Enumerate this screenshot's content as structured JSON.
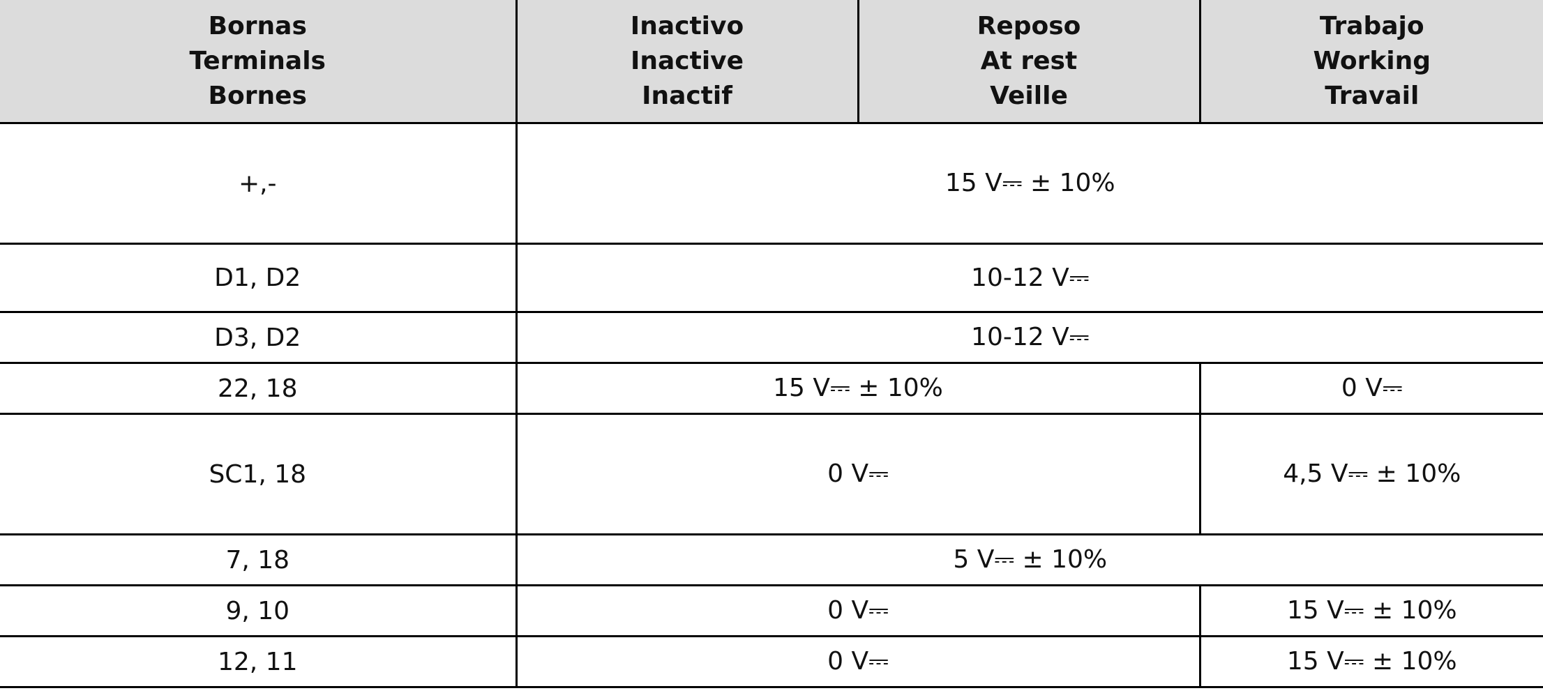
{
  "headers": [
    {
      "lines": [
        "Bornas",
        "Terminals",
        "Bornes"
      ]
    },
    {
      "lines": [
        "Inactivo",
        "Inactive",
        "Inactif"
      ]
    },
    {
      "lines": [
        "Reposo",
        "At rest",
        "Veille"
      ]
    },
    {
      "lines": [
        "Trabajo",
        "Working",
        "Travail"
      ]
    }
  ],
  "rows": [
    {
      "terminal": "+,-",
      "cells": [
        {
          "text": "15 V⎓ ± 10%",
          "span": 3
        }
      ]
    },
    {
      "terminal": "D1, D2",
      "cells": [
        {
          "text": "10-12 V⎓",
          "span": 3
        }
      ]
    },
    {
      "terminal": "D3, D2",
      "cells": [
        {
          "text": "10-12 V⎓",
          "span": 3
        }
      ]
    },
    {
      "terminal": "22, 18",
      "cells": [
        {
          "text": "15 V⎓ ± 10%",
          "span": 2
        },
        {
          "text": "0 V⎓",
          "span": 1
        }
      ]
    },
    {
      "terminal": "SC1, 18",
      "cells": [
        {
          "text": "0 V⎓",
          "span": 2
        },
        {
          "text": "4,5 V⎓ ± 10%",
          "span": 1
        }
      ]
    },
    {
      "terminal": "7, 18",
      "cells": [
        {
          "text": "5 V⎓ ± 10%",
          "span": 3
        }
      ]
    },
    {
      "terminal": "9, 10",
      "cells": [
        {
          "text": "0 V⎓",
          "span": 2
        },
        {
          "text": "15 V⎓ ± 10%",
          "span": 1
        }
      ]
    },
    {
      "terminal": "12, 11",
      "cells": [
        {
          "text": "0 V⎓",
          "span": 2
        },
        {
          "text": "15 V⎓ ± 10%",
          "span": 1
        }
      ]
    }
  ]
}
